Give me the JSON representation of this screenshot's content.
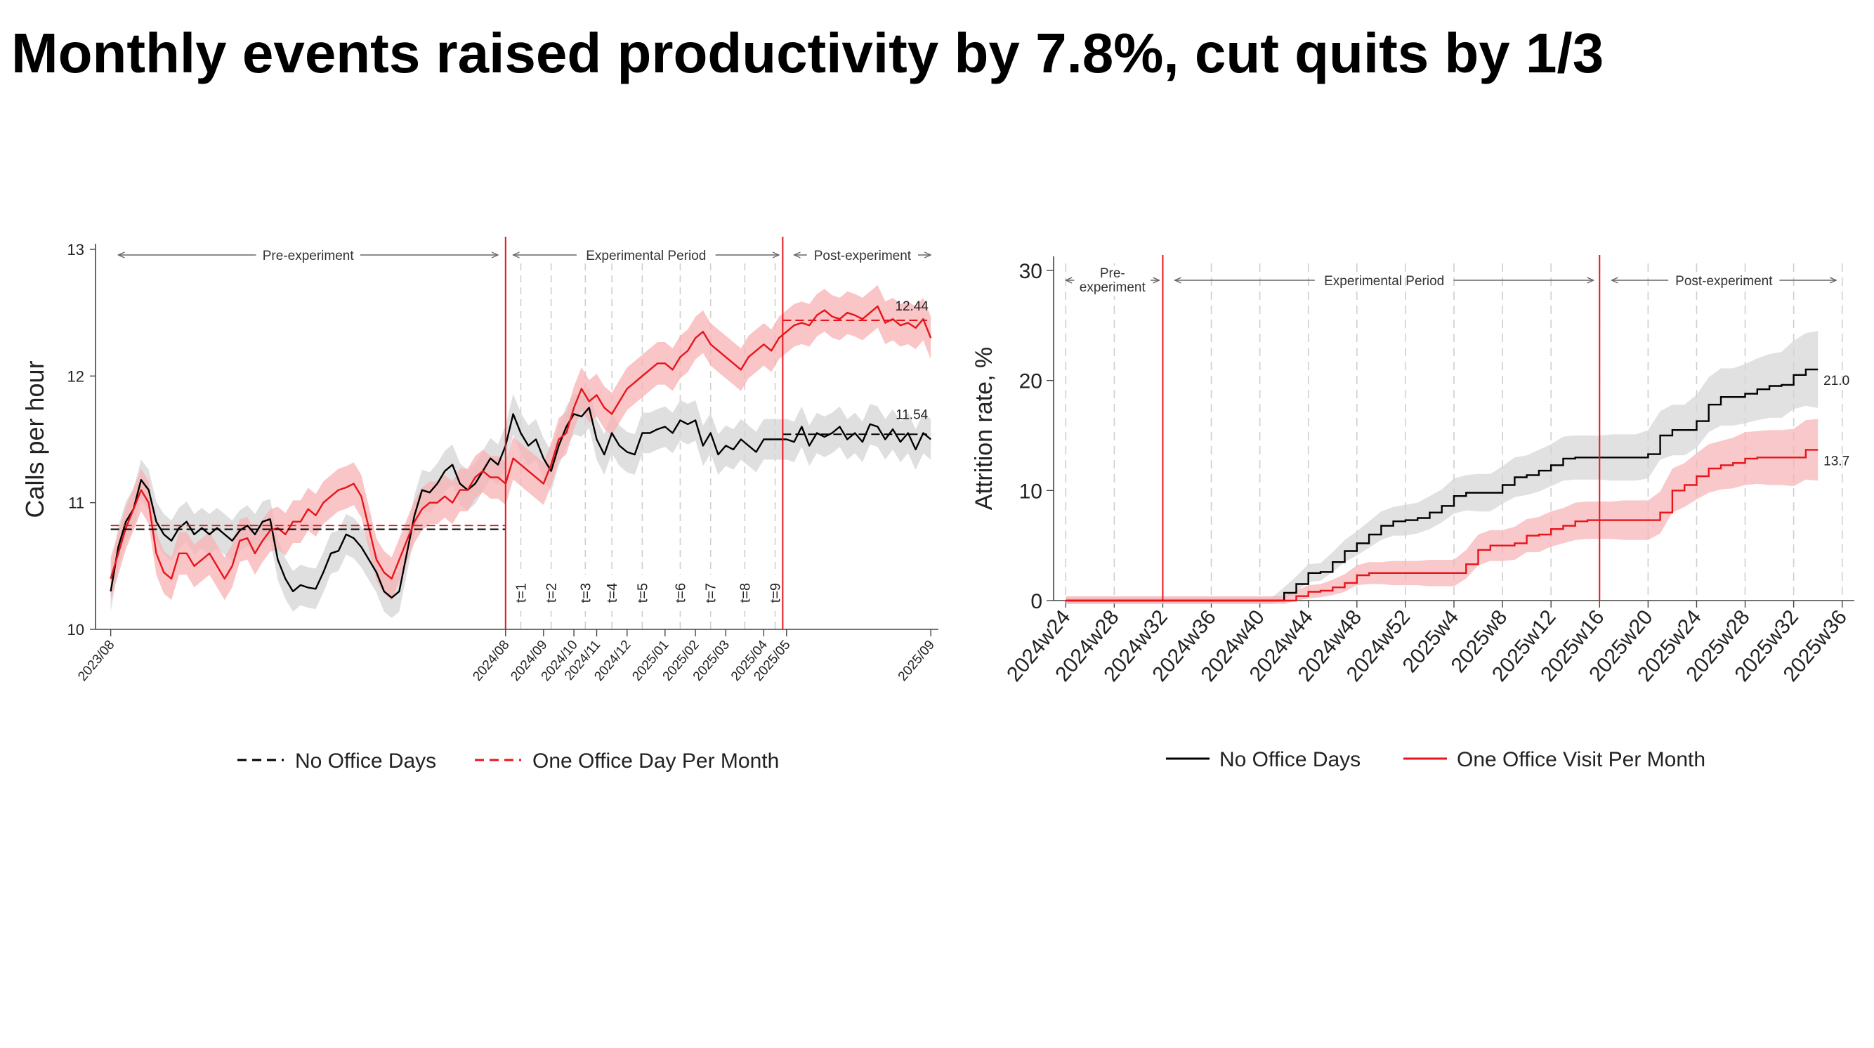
{
  "slide": {
    "title": "Monthly events raised productivity by 7.8%, cut quits by 1/3"
  },
  "colors": {
    "control": "#000000",
    "treatment": "#e8141b",
    "control_band": "#d4d4d4",
    "treatment_band": "#f7b1b3"
  },
  "chart_data": [
    {
      "type": "line",
      "ylabel": "Calls per hour",
      "ylim": [
        10,
        13
      ],
      "yticks": [
        "10",
        "11",
        "12",
        "13"
      ],
      "xticks": [
        "2023/08",
        "2024/08",
        "2024/09",
        "2024/10",
        "2024/11",
        "2024/12",
        "2025/01",
        "2025/02",
        "2025/03",
        "2025/04",
        "2025/05",
        "2025/09"
      ],
      "xtick_weeks": [
        0,
        52,
        57,
        61,
        64,
        68,
        73,
        77,
        81,
        86,
        89,
        108
      ],
      "xlim": [
        -2,
        109
      ],
      "periods": [
        {
          "label": "Pre-experiment",
          "from": 1,
          "to": 51
        },
        {
          "label": "Experimental Period",
          "from": 53,
          "to": 88
        },
        {
          "label": "Post-experiment",
          "from": 90,
          "to": 108
        }
      ],
      "period_lines_x": [
        52,
        88.5
      ],
      "event_labels": [
        "t=1",
        "t=2",
        "t=3",
        "t=4",
        "t=5",
        "t=6",
        "t=7",
        "t=8",
        "t=9"
      ],
      "event_weeks": [
        54,
        58,
        62.5,
        66,
        70,
        75,
        79,
        83.5,
        87.5
      ],
      "end_labels": {
        "treatment": "12.44",
        "control": "11.54"
      },
      "pre_means": {
        "control": 10.79,
        "treatment": 10.82
      },
      "post_means": {
        "control": 11.54,
        "treatment": 12.44
      },
      "ci_half_width": 0.16,
      "series": [
        {
          "name": "No Office Days",
          "style": "dashed",
          "color_key": "control",
          "values": [
            10.3,
            10.65,
            10.85,
            10.95,
            11.18,
            11.1,
            10.85,
            10.75,
            10.7,
            10.8,
            10.85,
            10.75,
            10.8,
            10.75,
            10.8,
            10.75,
            10.7,
            10.78,
            10.82,
            10.75,
            10.85,
            10.87,
            10.55,
            10.4,
            10.3,
            10.35,
            10.33,
            10.32,
            10.45,
            10.6,
            10.62,
            10.75,
            10.72,
            10.65,
            10.55,
            10.45,
            10.3,
            10.25,
            10.3,
            10.6,
            10.9,
            11.1,
            11.08,
            11.15,
            11.25,
            11.3,
            11.15,
            11.1,
            11.15,
            11.25,
            11.35,
            11.3,
            11.45,
            11.7,
            11.55,
            11.45,
            11.5,
            11.35,
            11.25,
            11.45,
            11.6,
            11.7,
            11.68,
            11.75,
            11.5,
            11.38,
            11.55,
            11.45,
            11.4,
            11.38,
            11.55,
            11.55,
            11.58,
            11.6,
            11.55,
            11.65,
            11.62,
            11.65,
            11.45,
            11.55,
            11.38,
            11.45,
            11.42,
            11.5,
            11.45,
            11.4,
            11.5,
            11.5,
            11.5,
            11.5,
            11.48,
            11.6,
            11.45,
            11.55,
            11.52,
            11.55,
            11.6,
            11.5,
            11.55,
            11.48,
            11.62,
            11.6,
            11.5,
            11.58,
            11.48,
            11.55,
            11.42,
            11.55,
            11.5
          ]
        },
        {
          "name": "One Office Day Per Month",
          "style": "dashed",
          "color_key": "treatment",
          "values": [
            10.4,
            10.6,
            10.8,
            10.95,
            11.1,
            11.0,
            10.6,
            10.45,
            10.4,
            10.6,
            10.6,
            10.5,
            10.55,
            10.6,
            10.5,
            10.4,
            10.5,
            10.7,
            10.72,
            10.6,
            10.7,
            10.78,
            10.8,
            10.75,
            10.85,
            10.85,
            10.95,
            10.9,
            11.0,
            11.05,
            11.1,
            11.12,
            11.15,
            11.05,
            10.8,
            10.55,
            10.45,
            10.4,
            10.55,
            10.7,
            10.85,
            10.95,
            11.0,
            11.0,
            11.05,
            11.0,
            11.1,
            11.1,
            11.2,
            11.25,
            11.2,
            11.2,
            11.15,
            11.35,
            11.3,
            11.25,
            11.2,
            11.15,
            11.3,
            11.5,
            11.55,
            11.75,
            11.9,
            11.8,
            11.85,
            11.75,
            11.7,
            11.8,
            11.9,
            11.95,
            12.0,
            12.05,
            12.1,
            12.1,
            12.05,
            12.15,
            12.2,
            12.3,
            12.35,
            12.25,
            12.2,
            12.15,
            12.1,
            12.05,
            12.15,
            12.2,
            12.25,
            12.2,
            12.3,
            12.35,
            12.4,
            12.42,
            12.4,
            12.48,
            12.52,
            12.47,
            12.45,
            12.5,
            12.48,
            12.45,
            12.5,
            12.55,
            12.42,
            12.45,
            12.4,
            12.42,
            12.38,
            12.45,
            12.3,
            12.28
          ]
        }
      ]
    },
    {
      "type": "line",
      "ylabel": "Attrition rate, %",
      "ylim": [
        0,
        30
      ],
      "yticks": [
        "0",
        "10",
        "20",
        "30"
      ],
      "xticks": [
        "2024w24",
        "2024w28",
        "2024w32",
        "2024w36",
        "2024w40",
        "2024w44",
        "2024w48",
        "2024w52",
        "2025w4",
        "2025w8",
        "2025w12",
        "2025w16",
        "2025w20",
        "2025w24",
        "2025w28",
        "2025w32",
        "2025w36"
      ],
      "xtick_weeks": [
        0,
        4,
        8,
        12,
        16,
        20,
        24,
        28,
        32,
        36,
        40,
        44,
        48,
        52,
        56,
        60,
        64
      ],
      "xlim": [
        -1,
        65
      ],
      "periods": [
        {
          "label": "Pre-\nexperiment",
          "from": 0,
          "to": 7.7
        },
        {
          "label": "Experimental Period",
          "from": 9,
          "to": 43.5
        },
        {
          "label": "Post-experiment",
          "from": 45,
          "to": 63.5
        }
      ],
      "period_lines_x": [
        8,
        44
      ],
      "end_labels": {
        "treatment": "13.7",
        "control": "21.0"
      },
      "weeks": [
        0,
        1,
        2,
        3,
        4,
        5,
        6,
        7,
        8,
        9,
        10,
        11,
        12,
        13,
        14,
        15,
        16,
        17,
        18,
        19,
        20,
        21,
        22,
        23,
        24,
        25,
        26,
        27,
        28,
        29,
        30,
        31,
        32,
        33,
        34,
        35,
        36,
        37,
        38,
        39,
        40,
        41,
        42,
        43,
        44,
        45,
        46,
        47,
        48,
        49,
        50,
        51,
        52,
        53,
        54,
        55,
        56,
        57,
        58,
        59,
        60,
        61,
        62
      ],
      "series": [
        {
          "name": "No Office Days",
          "style": "solid",
          "color_key": "control",
          "values": [
            0,
            0,
            0,
            0,
            0,
            0,
            0,
            0,
            0,
            0,
            0,
            0,
            0,
            0,
            0,
            0,
            0,
            0,
            0.7,
            1.5,
            2.5,
            2.6,
            3.5,
            4.5,
            5.2,
            6.0,
            6.8,
            7.2,
            7.3,
            7.5,
            8.0,
            8.6,
            9.5,
            9.8,
            9.8,
            9.8,
            10.5,
            11.2,
            11.4,
            11.8,
            12.3,
            12.9,
            13.0,
            13.0,
            13.0,
            13.0,
            13.0,
            13.0,
            13.3,
            15.0,
            15.5,
            15.5,
            16.3,
            17.8,
            18.5,
            18.5,
            18.8,
            19.2,
            19.5,
            19.6,
            20.5,
            21.0,
            21.0
          ],
          "ci_half": [
            0.3,
            0.3,
            0.3,
            0.3,
            0.3,
            0.3,
            0.3,
            0.3,
            0.3,
            0.3,
            0.3,
            0.3,
            0.3,
            0.3,
            0.3,
            0.3,
            0.3,
            0.3,
            0.5,
            0.7,
            0.8,
            0.8,
            0.9,
            1.0,
            1.1,
            1.2,
            1.3,
            1.3,
            1.4,
            1.4,
            1.5,
            1.5,
            1.6,
            1.6,
            1.7,
            1.7,
            1.7,
            1.8,
            1.8,
            1.9,
            1.9,
            2.0,
            2.0,
            2.0,
            2.0,
            2.1,
            2.1,
            2.1,
            2.2,
            2.2,
            2.3,
            2.3,
            2.4,
            2.5,
            2.6,
            2.6,
            2.7,
            2.8,
            2.9,
            3.0,
            3.1,
            3.3,
            3.5
          ]
        },
        {
          "name": "One Office Visit Per Month",
          "style": "solid",
          "color_key": "treatment",
          "values": [
            0,
            0,
            0,
            0,
            0,
            0,
            0,
            0,
            0,
            0,
            0,
            0,
            0,
            0,
            0,
            0,
            0,
            0,
            0,
            0.4,
            0.8,
            0.9,
            1.2,
            1.6,
            2.3,
            2.5,
            2.5,
            2.5,
            2.5,
            2.5,
            2.5,
            2.5,
            2.5,
            3.3,
            4.6,
            5.0,
            5.0,
            5.2,
            5.9,
            6.0,
            6.5,
            6.8,
            7.2,
            7.3,
            7.3,
            7.3,
            7.3,
            7.3,
            7.3,
            8.0,
            10.0,
            10.5,
            11.3,
            12.0,
            12.3,
            12.5,
            12.9,
            13.0,
            13.0,
            13.0,
            13.0,
            13.7,
            13.7
          ],
          "ci_half": [
            0.4,
            0.4,
            0.4,
            0.4,
            0.4,
            0.4,
            0.4,
            0.4,
            0.4,
            0.4,
            0.4,
            0.4,
            0.4,
            0.4,
            0.4,
            0.4,
            0.4,
            0.4,
            0.4,
            0.5,
            0.6,
            0.6,
            0.7,
            0.8,
            0.9,
            1.0,
            1.0,
            1.1,
            1.1,
            1.1,
            1.2,
            1.2,
            1.2,
            1.3,
            1.4,
            1.4,
            1.4,
            1.5,
            1.5,
            1.6,
            1.6,
            1.6,
            1.7,
            1.7,
            1.7,
            1.7,
            1.8,
            1.8,
            1.8,
            1.9,
            2.0,
            2.0,
            2.1,
            2.2,
            2.2,
            2.3,
            2.4,
            2.4,
            2.5,
            2.5,
            2.6,
            2.7,
            2.8
          ]
        }
      ]
    }
  ]
}
